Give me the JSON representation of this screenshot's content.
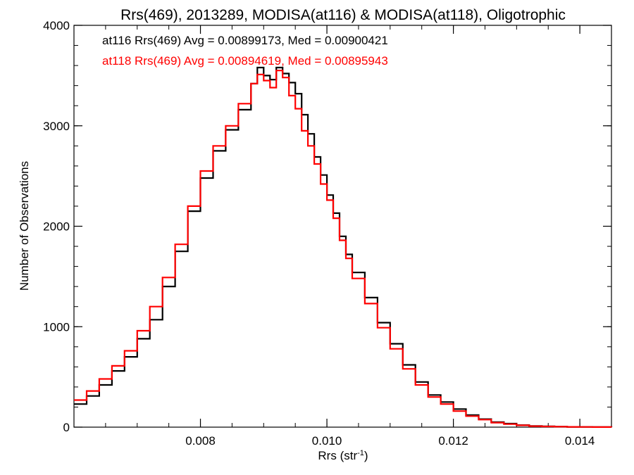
{
  "chart_data": {
    "type": "line",
    "title": "Rrs(469), 2013289, MODISA(at116) & MODISA(at118), Oligotrophic",
    "xlabel": "Rrs (str",
    "xlabel_sup": "-1",
    "xlabel_end": ")",
    "ylabel": "Number of Observations",
    "xlim": [
      0.006,
      0.0145
    ],
    "ylim": [
      0,
      4000
    ],
    "x_ticks": [
      {
        "value": 0.008,
        "label": "0.008"
      },
      {
        "value": 0.01,
        "label": "0.010"
      },
      {
        "value": 0.012,
        "label": "0.012"
      },
      {
        "value": 0.014,
        "label": "0.014"
      }
    ],
    "y_ticks": [
      {
        "value": 0,
        "label": "0"
      },
      {
        "value": 1000,
        "label": "1000"
      },
      {
        "value": 2000,
        "label": "2000"
      },
      {
        "value": 3000,
        "label": "3000"
      },
      {
        "value": 4000,
        "label": "4000"
      }
    ],
    "x_minor_step": 0.0005,
    "y_minor_step": 200,
    "annotations": [
      {
        "text": "at116 Rrs(469) Avg = 0.00899173, Med = 0.00900421",
        "color": "#000000"
      },
      {
        "text": "at118 Rrs(469) Avg = 0.00894619, Med = 0.00895943",
        "color": "#ff0000"
      }
    ],
    "series": [
      {
        "color": "#000000",
        "x": [
          0.006,
          0.0062,
          0.0064,
          0.0066,
          0.0068,
          0.007,
          0.0072,
          0.0074,
          0.0076,
          0.0078,
          0.008,
          0.0082,
          0.0084,
          0.0086,
          0.0088,
          0.0089,
          0.009,
          0.0091,
          0.0092,
          0.0093,
          0.0094,
          0.0095,
          0.0096,
          0.0097,
          0.0098,
          0.0099,
          0.01,
          0.0101,
          0.0102,
          0.0103,
          0.0104,
          0.0106,
          0.0108,
          0.011,
          0.0112,
          0.0114,
          0.0116,
          0.0118,
          0.012,
          0.0122,
          0.0124,
          0.0126,
          0.0128,
          0.013,
          0.0132,
          0.0134,
          0.0136,
          0.0138,
          0.014,
          0.0142,
          0.0145
        ],
        "y": [
          230,
          310,
          420,
          560,
          700,
          880,
          1070,
          1400,
          1750,
          2150,
          2480,
          2750,
          2960,
          3160,
          3420,
          3580,
          3500,
          3460,
          3580,
          3520,
          3430,
          3320,
          3110,
          2920,
          2690,
          2510,
          2310,
          2130,
          1900,
          1720,
          1540,
          1290,
          1040,
          830,
          620,
          450,
          320,
          250,
          180,
          120,
          80,
          50,
          35,
          20,
          12,
          8,
          5,
          3,
          2,
          1,
          0
        ]
      },
      {
        "color": "#ff0000",
        "x": [
          0.006,
          0.0062,
          0.0064,
          0.0066,
          0.0068,
          0.007,
          0.0072,
          0.0074,
          0.0076,
          0.0078,
          0.008,
          0.0082,
          0.0084,
          0.0086,
          0.0088,
          0.0089,
          0.009,
          0.0091,
          0.0092,
          0.0093,
          0.0094,
          0.0095,
          0.0096,
          0.0097,
          0.0098,
          0.0099,
          0.01,
          0.0101,
          0.0102,
          0.0103,
          0.0104,
          0.0106,
          0.0108,
          0.011,
          0.0112,
          0.0114,
          0.0116,
          0.0118,
          0.012,
          0.0122,
          0.0124,
          0.0126,
          0.0128,
          0.013,
          0.0132,
          0.0134,
          0.0136,
          0.0138,
          0.014,
          0.0142,
          0.0145
        ],
        "y": [
          270,
          360,
          480,
          610,
          760,
          960,
          1200,
          1490,
          1820,
          2200,
          2550,
          2800,
          3000,
          3220,
          3420,
          3510,
          3450,
          3380,
          3550,
          3480,
          3300,
          3170,
          2950,
          2800,
          2620,
          2420,
          2260,
          2080,
          1860,
          1680,
          1480,
          1230,
          990,
          780,
          580,
          420,
          300,
          230,
          160,
          110,
          75,
          45,
          30,
          18,
          10,
          7,
          5,
          3,
          2,
          1,
          0
        ]
      }
    ]
  }
}
